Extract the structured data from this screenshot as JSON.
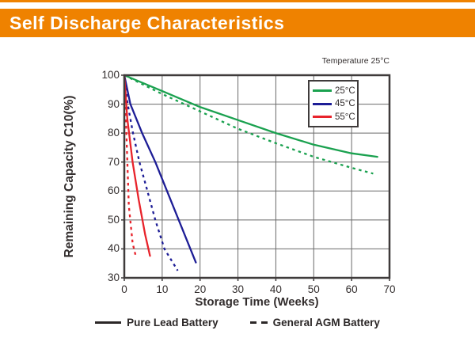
{
  "header": {
    "title": "Self Discharge Characteristics",
    "bar_color": "#ef8200"
  },
  "chart": {
    "note": "Temperature 25°C",
    "xlabel": "Storage Time (Weeks)",
    "ylabel": "Remaining Capacity C10(%)",
    "temp_legend": [
      {
        "label": "25°C",
        "color": "#1aa14f"
      },
      {
        "label": "45°C",
        "color": "#1d1d96"
      },
      {
        "label": "55°C",
        "color": "#e8232b"
      }
    ],
    "type_legend": [
      {
        "label": "Pure Lead Battery",
        "style": "solid"
      },
      {
        "label": "General AGM Battery",
        "style": "dashed"
      }
    ]
  },
  "chart_data": {
    "type": "line",
    "title": "Self Discharge Characteristics",
    "annotation": "Temperature 25°C",
    "xlabel": "Storage Time (Weeks)",
    "ylabel": "Remaining Capacity C10(%)",
    "xlim": [
      0,
      70
    ],
    "ylim": [
      30,
      100
    ],
    "xticks": [
      0,
      10,
      20,
      30,
      40,
      50,
      60,
      70
    ],
    "yticks": [
      30,
      40,
      50,
      60,
      70,
      80,
      90,
      100
    ],
    "grid": true,
    "grid_color": "#6a6a6a",
    "axis_color": "#3f3b3b",
    "legend_position": "top-right",
    "series": [
      {
        "name": "25°C Pure Lead Battery",
        "color": "#1aa14f",
        "style": "solid",
        "x": [
          0,
          10,
          20,
          30,
          40,
          50,
          60,
          66.8
        ],
        "y": [
          100,
          94.5,
          89,
          84.5,
          80,
          76,
          73,
          71.8
        ]
      },
      {
        "name": "25°C General AGM Battery",
        "color": "#1aa14f",
        "style": "dashed",
        "x": [
          0,
          10,
          20,
          30,
          40,
          50,
          60,
          65.7
        ],
        "y": [
          100,
          93.5,
          87.5,
          81.5,
          76.5,
          71.8,
          68,
          66
        ]
      },
      {
        "name": "45°C Pure Lead Battery",
        "color": "#1d1d96",
        "style": "solid",
        "x": [
          0,
          1.6,
          4.7,
          8.2,
          18.9
        ],
        "y": [
          100,
          90,
          80,
          70,
          35.3
        ]
      },
      {
        "name": "45°C General AGM Battery",
        "color": "#1d1d96",
        "style": "dashed",
        "x": [
          0,
          0.9,
          2.3,
          4,
          6.1,
          8.2,
          10.6,
          14.1
        ],
        "y": [
          100,
          90,
          80,
          70,
          60,
          50,
          40,
          32.5
        ]
      },
      {
        "name": "55°C Pure Lead Battery",
        "color": "#e8232b",
        "style": "solid",
        "x": [
          0,
          0.8,
          2.2,
          3.8,
          5.5,
          6.8
        ],
        "y": [
          100,
          85,
          70,
          57,
          45,
          37.6
        ]
      },
      {
        "name": "55°C General AGM Battery",
        "color": "#e8232b",
        "style": "dashed",
        "x": [
          0,
          0.5,
          1.2,
          2.2,
          3.0
        ],
        "y": [
          100,
          82,
          55,
          42,
          37.6
        ]
      }
    ]
  }
}
